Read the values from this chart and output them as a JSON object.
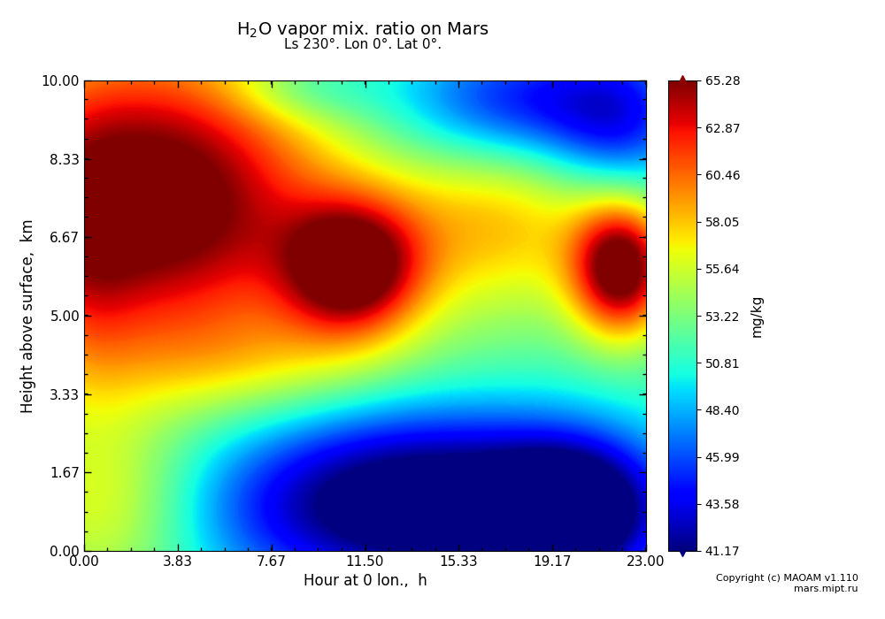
{
  "title_main": "H$_2$O vapor mix. ratio on Mars",
  "title_sub": "Ls 230°. Lon 0°. Lat 0°.",
  "xlabel": "Hour at 0 lon.,  h",
  "ylabel": "Height above surface,  km",
  "cbar_label": "mg/kg",
  "x_min": 0.0,
  "x_max": 23.0,
  "y_min": 0.0,
  "y_max": 10.0,
  "x_ticks": [
    0.0,
    3.83,
    7.67,
    11.5,
    15.33,
    19.17,
    23.0
  ],
  "y_ticks": [
    0.0,
    1.67,
    3.33,
    5.0,
    6.67,
    8.33,
    10.0
  ],
  "cbar_min": 41.17,
  "cbar_max": 65.28,
  "cbar_ticks": [
    65.28,
    62.87,
    60.46,
    58.05,
    55.64,
    53.22,
    50.81,
    48.4,
    45.99,
    43.58,
    41.17
  ],
  "copyright": "Copyright (c) MAOAM v1.110\nmars.mipt.ru",
  "background_color": "#ffffff",
  "nx": 200,
  "ny": 200
}
